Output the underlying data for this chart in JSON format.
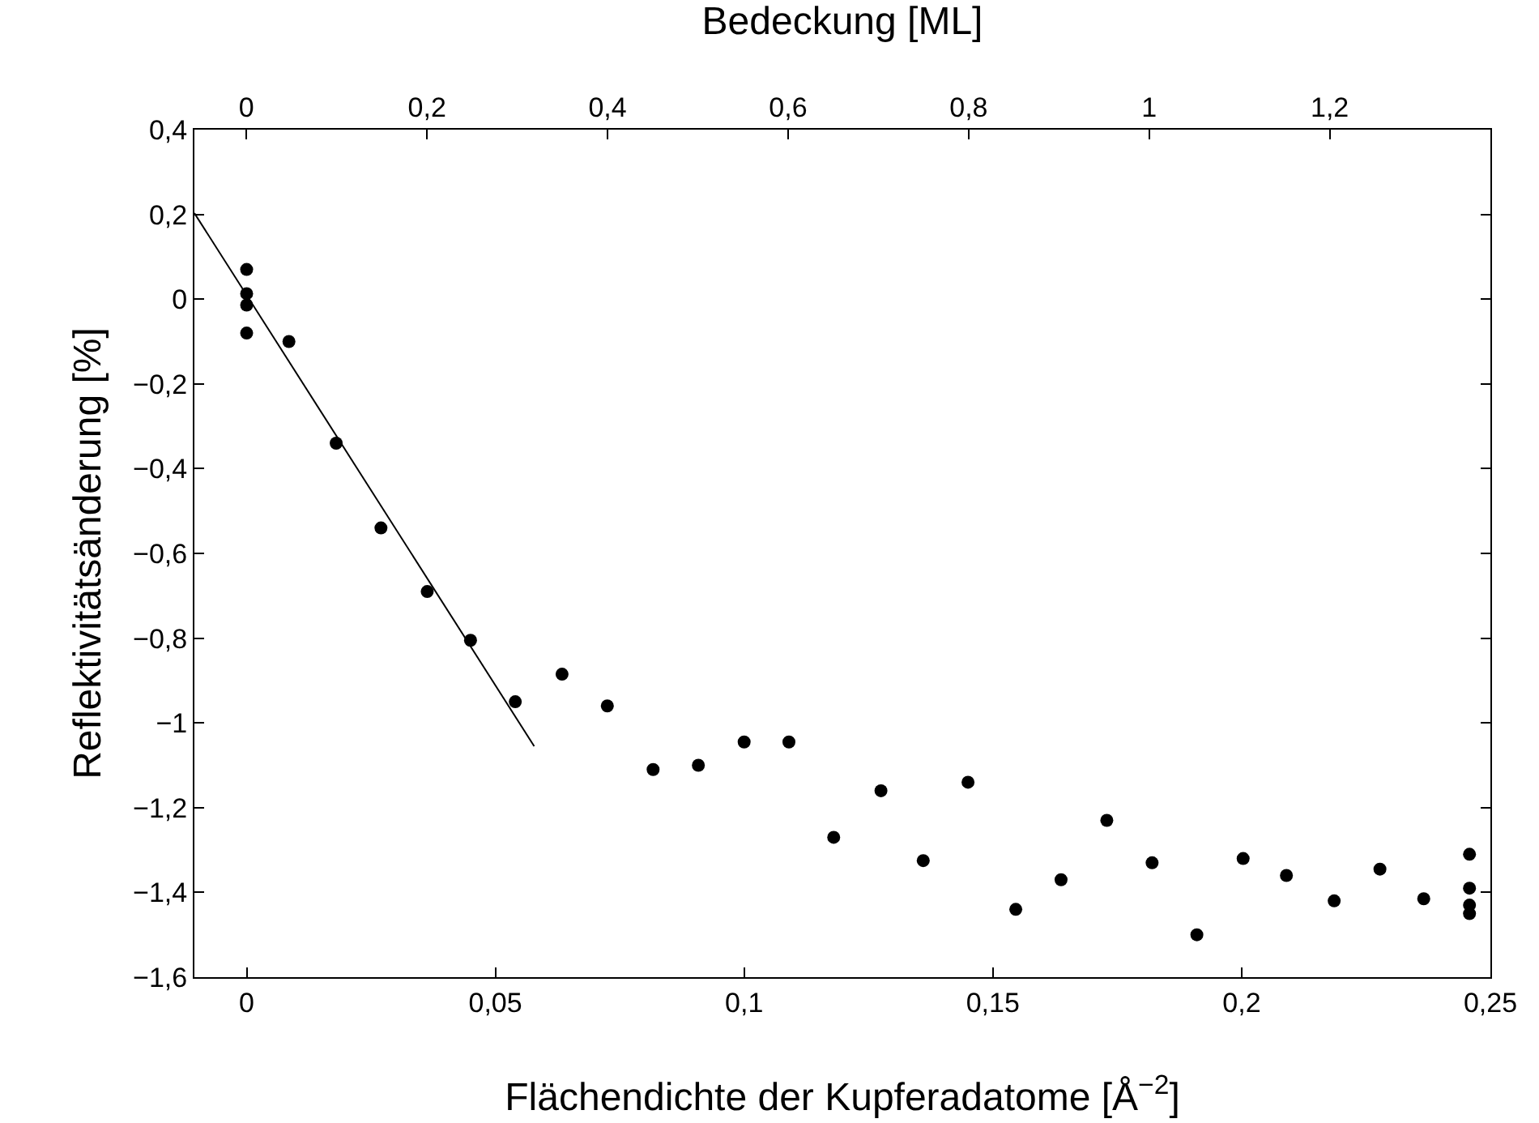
{
  "chart_data": {
    "type": "scatter",
    "xlabel": "Flächendichte der Kupferadatome [Å$^{−2}$]",
    "ylabel": "Reflektivitätsänderung [%]",
    "x2label": "Bedeckung [ML]",
    "x": [
      0,
      0,
      0,
      0,
      0.0085,
      0.018,
      0.027,
      0.0363,
      0.045,
      0.054,
      0.0634,
      0.0725,
      0.0817,
      0.0908,
      0.1,
      0.109,
      0.118,
      0.1275,
      0.136,
      0.145,
      0.1546,
      0.1637,
      0.1729,
      0.182,
      0.191,
      0.2003,
      0.209,
      0.2186,
      0.2278,
      0.2366,
      0.2458,
      0.2458,
      0.2458,
      0.2458
    ],
    "series": [
      {
        "color": "#000000",
        "marker": "circle",
        "values": [
          0.07,
          0.013,
          -0.014,
          -0.08,
          -0.1,
          -0.34,
          -0.54,
          -0.69,
          -0.805,
          -0.95,
          -0.885,
          -0.96,
          -1.11,
          -1.1,
          -1.045,
          -1.045,
          -1.27,
          -1.16,
          -1.325,
          -1.14,
          -1.44,
          -1.37,
          -1.23,
          -1.33,
          -1.5,
          -1.32,
          -1.36,
          -1.42,
          -1.345,
          -1.415,
          -1.31,
          -1.39,
          -1.43,
          -1.45
        ]
      },
      {
        "type": "line",
        "color": "#000000",
        "marker": "none",
        "line_style": "solid",
        "x": [
          -0.0105,
          0.0578
        ],
        "values": [
          0.203,
          -1.055
        ]
      }
    ],
    "xlim": [
      -0.0105,
      0.25
    ],
    "xticks": [
      0,
      {
        "value": 0.05,
        "label": "0,05"
      },
      {
        "value": 0.1,
        "label": "0,1"
      },
      {
        "value": 0.15,
        "label": "0,15"
      },
      {
        "value": 0.2,
        "label": "0,2"
      },
      {
        "value": 0.25,
        "label": "0,25"
      }
    ],
    "x2lim": [
      -0.0577,
      1.378
    ],
    "x2ticks": [
      0,
      {
        "value": 0.2,
        "label": "0,2"
      },
      {
        "value": 0.4,
        "label": "0,4"
      },
      {
        "value": 0.6,
        "label": "0,6"
      },
      {
        "value": 0.8,
        "label": "0,8"
      },
      1,
      {
        "value": 1.2,
        "label": "1,2"
      }
    ],
    "ylim": [
      -1.6,
      0.4
    ],
    "yticks": [
      {
        "value": -1.6,
        "label": "−1,6"
      },
      {
        "value": -1.4,
        "label": "−1,4"
      },
      {
        "value": -1.2,
        "label": "−1,2"
      },
      {
        "value": -1,
        "label": "−1"
      },
      {
        "value": -0.8,
        "label": "−0,8"
      },
      {
        "value": -0.6,
        "label": "−0,6"
      },
      {
        "value": -0.4,
        "label": "−0,4"
      },
      {
        "value": -0.2,
        "label": "−0,2"
      },
      0,
      {
        "value": 0.2,
        "label": "0,2"
      },
      {
        "value": 0.4,
        "label": "0,4"
      }
    ],
    "tick_labels": true
  }
}
